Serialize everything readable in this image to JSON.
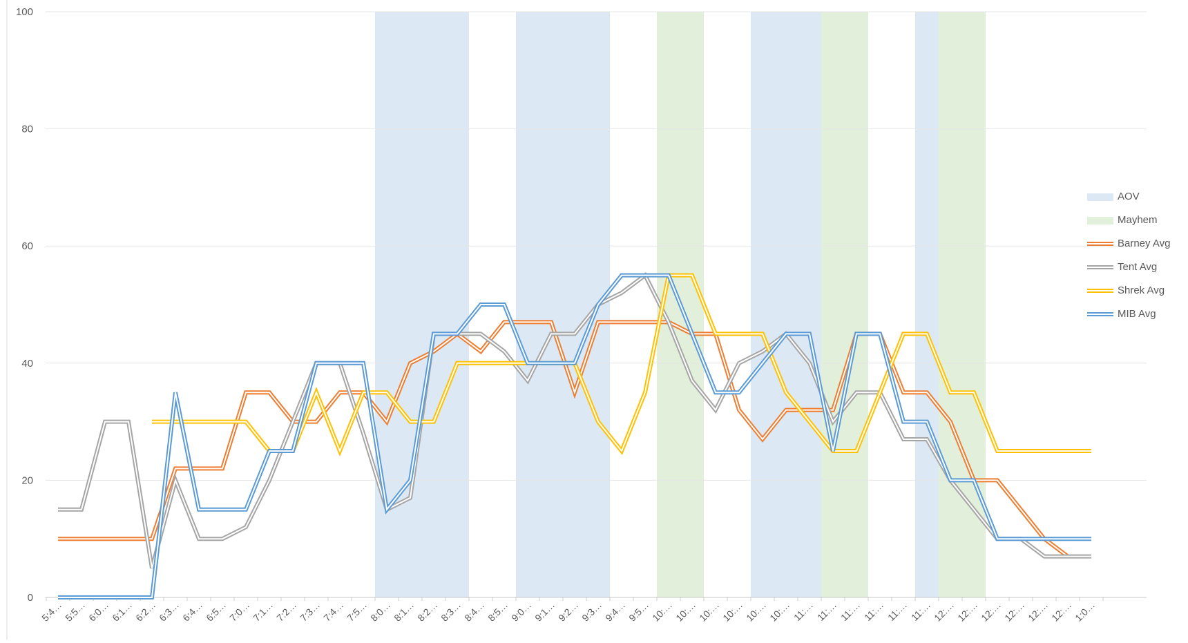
{
  "chart_data": {
    "type": "line",
    "title": "",
    "xlabel": "",
    "ylabel": "",
    "ylim": [
      0,
      100
    ],
    "yticks": [
      0,
      20,
      40,
      60,
      80,
      100
    ],
    "grid": true,
    "legend_position": "right",
    "categories": [
      "5:4…",
      "5:5…",
      "6:0…",
      "6:1…",
      "6:2…",
      "6:3…",
      "6:4…",
      "6:5…",
      "7:0…",
      "7:1…",
      "7:2…",
      "7:3…",
      "7:4…",
      "7:5…",
      "8:0…",
      "8:1…",
      "8:2…",
      "8:3…",
      "8:4…",
      "8:5…",
      "9:0…",
      "9:1…",
      "9:2…",
      "9:3…",
      "9:4…",
      "9:5…",
      "10:…",
      "10:…",
      "10:…",
      "10:…",
      "10:…",
      "10:…",
      "11:…",
      "11:…",
      "11:…",
      "11:…",
      "11:…",
      "11:…",
      "12:…",
      "12:…",
      "12:…",
      "12:…",
      "12:…",
      "12:…",
      "1:0…"
    ],
    "bands": [
      {
        "name": "AOV",
        "color": "#dce9f5",
        "spans": [
          [
            14,
            17
          ],
          [
            20,
            23
          ],
          [
            30,
            32
          ],
          [
            37,
            37
          ]
        ]
      },
      {
        "name": "Mayhem",
        "color": "#e2efda",
        "spans": [
          [
            26,
            27
          ],
          [
            33,
            34
          ],
          [
            38,
            39
          ]
        ]
      }
    ],
    "series": [
      {
        "name": "Barney Avg",
        "color": "#ed7d31",
        "values": [
          10,
          10,
          10,
          10,
          10,
          22,
          22,
          22,
          35,
          35,
          30,
          30,
          35,
          35,
          30,
          40,
          42,
          45,
          42,
          47,
          47,
          47,
          35,
          47,
          47,
          47,
          47,
          45,
          45,
          32,
          27,
          32,
          32,
          32,
          45,
          45,
          35,
          35,
          30,
          20,
          20,
          15,
          10,
          7,
          null
        ]
      },
      {
        "name": "Tent Avg",
        "color": "#a5a5a5",
        "values": [
          15,
          15,
          30,
          30,
          5,
          20,
          10,
          10,
          12,
          20,
          30,
          40,
          40,
          28,
          15,
          17,
          45,
          45,
          45,
          42,
          37,
          45,
          45,
          50,
          52,
          55,
          47,
          37,
          32,
          40,
          42,
          45,
          40,
          30,
          35,
          35,
          27,
          27,
          20,
          15,
          10,
          10,
          7,
          7,
          7
        ]
      },
      {
        "name": "Shrek Avg",
        "color": "#ffc000",
        "values": [
          null,
          null,
          null,
          null,
          30,
          30,
          30,
          30,
          30,
          25,
          25,
          35,
          25,
          35,
          35,
          30,
          30,
          40,
          40,
          40,
          40,
          40,
          40,
          30,
          25,
          35,
          55,
          55,
          45,
          45,
          45,
          35,
          30,
          25,
          25,
          35,
          45,
          45,
          35,
          35,
          25,
          25,
          25,
          25,
          25
        ]
      },
      {
        "name": "MIB Avg",
        "color": "#5b9bd5",
        "values": [
          0,
          0,
          0,
          0,
          0,
          35,
          15,
          15,
          15,
          25,
          25,
          40,
          40,
          40,
          15,
          20,
          45,
          45,
          50,
          50,
          40,
          40,
          40,
          50,
          55,
          55,
          55,
          45,
          35,
          35,
          40,
          45,
          45,
          25,
          45,
          45,
          30,
          30,
          20,
          20,
          10,
          10,
          10,
          10,
          10
        ]
      }
    ]
  }
}
